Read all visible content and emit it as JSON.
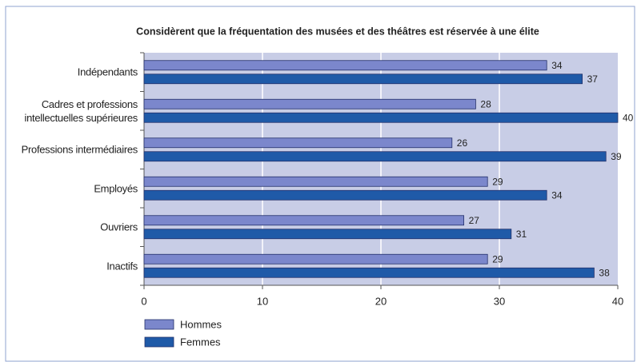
{
  "chart_data": {
    "type": "bar",
    "orientation": "horizontal",
    "title": "Considèrent que la fréquentation des musées et des théâtres est réservée à une élite",
    "categories": [
      "Indépendants",
      "Cadres et professions\nintellectuelles supérieures",
      "Professions intermédiaires",
      "Employés",
      "Ouvriers",
      "Inactifs"
    ],
    "series": [
      {
        "name": "Hommes",
        "color": "#7b87cc",
        "values": [
          34,
          28,
          26,
          29,
          27,
          29
        ]
      },
      {
        "name": "Femmes",
        "color": "#1f5aa8",
        "values": [
          37,
          40,
          39,
          34,
          31,
          38
        ]
      }
    ],
    "xlim": [
      0,
      40
    ],
    "xticks": [
      0,
      10,
      20,
      30,
      40
    ],
    "grid": true,
    "background": "#c8cde6"
  }
}
